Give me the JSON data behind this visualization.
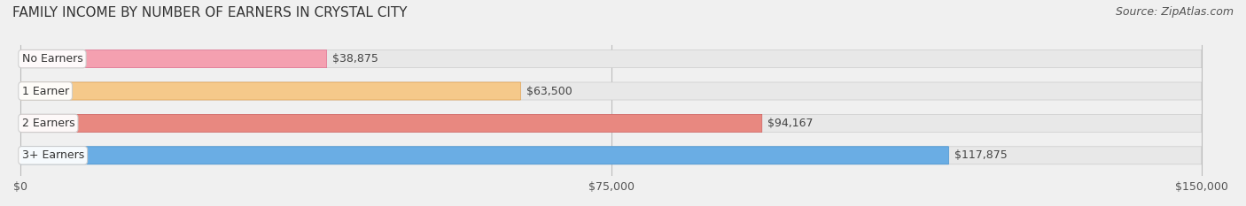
{
  "title": "FAMILY INCOME BY NUMBER OF EARNERS IN CRYSTAL CITY",
  "source": "Source: ZipAtlas.com",
  "categories": [
    "No Earners",
    "1 Earner",
    "2 Earners",
    "3+ Earners"
  ],
  "values": [
    38875,
    63500,
    94167,
    117875
  ],
  "labels": [
    "$38,875",
    "$63,500",
    "$94,167",
    "$117,875"
  ],
  "bar_colors": [
    "#f4a0b0",
    "#f5c98a",
    "#e88880",
    "#6aade4"
  ],
  "bar_edge_colors": [
    "#e07090",
    "#e0a050",
    "#d06060",
    "#4090d0"
  ],
  "bg_color": "#f0f0f0",
  "bar_bg_color": "#e8e8e8",
  "xlim": [
    0,
    150000
  ],
  "xticks": [
    0,
    75000,
    150000
  ],
  "xticklabels": [
    "$0",
    "$75,000",
    "$150,000"
  ],
  "title_fontsize": 11,
  "source_fontsize": 9,
  "label_fontsize": 9,
  "tick_fontsize": 9,
  "bar_height": 0.55,
  "figsize": [
    14.06,
    2.33
  ],
  "dpi": 100
}
